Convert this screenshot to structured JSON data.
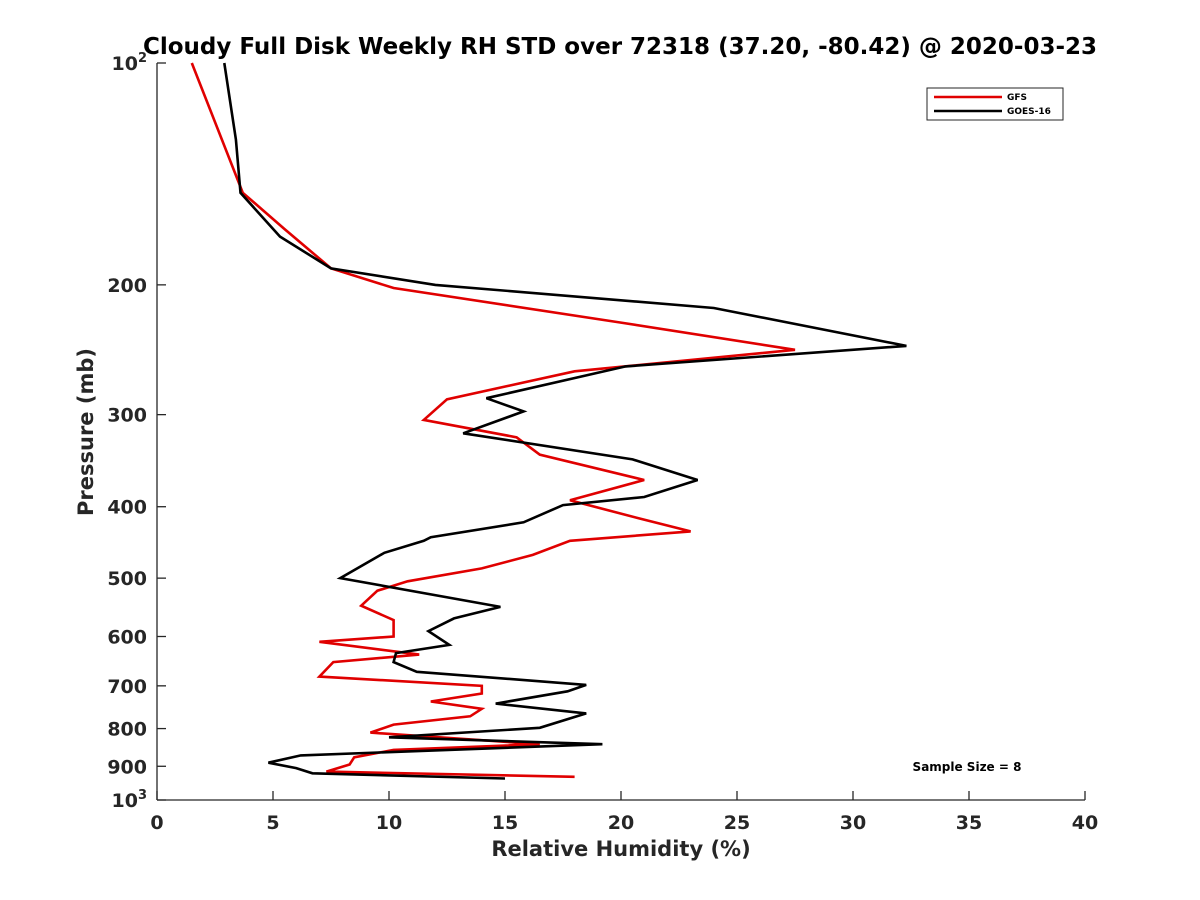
{
  "chart_data": {
    "type": "line",
    "title": "Cloudy Full Disk Weekly RH STD over 72318 (37.20, -80.42) @ 2020-03-23",
    "xlabel": "Relative Humidity (%)",
    "ylabel": "Pressure (mb)",
    "xlim": [
      0,
      40
    ],
    "ylim": [
      100,
      1000
    ],
    "yscale": "log",
    "y_reversed": true,
    "xticks": [
      0,
      5,
      10,
      15,
      20,
      25,
      30,
      35,
      40
    ],
    "yticks": [
      {
        "value": 100,
        "label": "10",
        "sup": "2"
      },
      {
        "value": 200,
        "label": "200"
      },
      {
        "value": 300,
        "label": "300"
      },
      {
        "value": 400,
        "label": "400"
      },
      {
        "value": 500,
        "label": "500"
      },
      {
        "value": 600,
        "label": "600"
      },
      {
        "value": 700,
        "label": "700"
      },
      {
        "value": 800,
        "label": "800"
      },
      {
        "value": 900,
        "label": "900"
      },
      {
        "value": 1000,
        "label": "10",
        "sup": "3"
      }
    ],
    "legend_position": "top-right",
    "annotation": "Sample Size = 8",
    "series": [
      {
        "name": "GFS",
        "color": "#e00000",
        "rh": [
          1.5,
          3.7,
          5.5,
          7.5,
          10.2,
          20.0,
          27.5,
          18.0,
          12.5,
          11.5,
          15.5,
          16.5,
          21.0,
          17.8,
          20.8,
          23.0,
          17.8,
          16.2,
          14.0,
          10.8,
          9.5,
          8.8,
          10.2,
          10.2,
          7.0,
          11.3,
          7.6,
          7.0,
          14.0,
          14.0,
          11.8,
          14.0,
          13.5,
          10.2,
          9.2,
          16.5,
          10.2,
          8.5,
          8.3,
          7.3,
          18.0
        ],
        "pressure": [
          100,
          150,
          168,
          190,
          202,
          225,
          245,
          262,
          286,
          305,
          322,
          340,
          368,
          392,
          415,
          432,
          445,
          465,
          485,
          505,
          520,
          545,
          570,
          600,
          610,
          635,
          650,
          680,
          700,
          717,
          735,
          752,
          770,
          790,
          810,
          840,
          855,
          875,
          895,
          915,
          930
        ]
      },
      {
        "name": "GOES-16",
        "color": "#000000",
        "rh": [
          2.9,
          3.4,
          3.6,
          5.3,
          7.5,
          12.0,
          24.0,
          32.3,
          20.2,
          14.2,
          15.8,
          13.2,
          20.5,
          23.3,
          21.0,
          17.5,
          15.8,
          11.8,
          11.5,
          9.8,
          7.9,
          14.8,
          12.8,
          11.7,
          12.6,
          10.3,
          10.2,
          11.2,
          18.5,
          17.7,
          14.6,
          18.5,
          16.5,
          10.0,
          19.2,
          6.2,
          4.8,
          6.0,
          6.7,
          15.0
        ],
        "pressure": [
          100,
          127,
          150,
          172,
          190,
          200,
          215,
          242,
          258,
          285,
          297,
          318,
          345,
          368,
          388,
          398,
          420,
          440,
          445,
          462,
          500,
          547,
          567,
          590,
          616,
          632,
          650,
          670,
          698,
          712,
          740,
          763,
          798,
          822,
          840,
          870,
          890,
          905,
          920,
          935
        ]
      }
    ]
  }
}
